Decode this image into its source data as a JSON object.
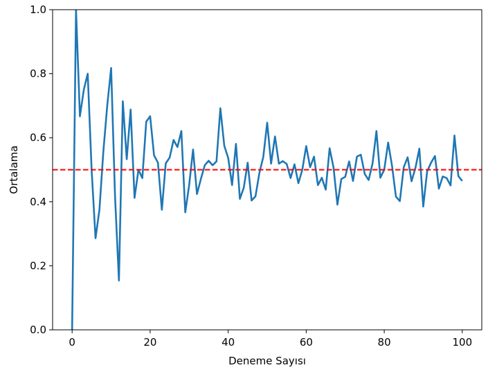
{
  "chart_data": {
    "type": "line",
    "title": "",
    "xlabel": "Deneme Sayısı",
    "ylabel": "Ortalama",
    "xlim": [
      -5,
      105
    ],
    "ylim": [
      0,
      1.0
    ],
    "xticks": [
      0,
      20,
      40,
      60,
      80,
      100
    ],
    "yticks": [
      0.0,
      0.2,
      0.4,
      0.6,
      0.8,
      1.0
    ],
    "xtick_labels": [
      "0",
      "20",
      "40",
      "60",
      "80",
      "100"
    ],
    "ytick_labels": [
      "0.0",
      "0.2",
      "0.4",
      "0.6",
      "0.8",
      "1.0"
    ],
    "grid": false,
    "series": [
      {
        "color": "#1f77b4",
        "x": [
          0,
          1,
          2,
          3,
          4,
          5,
          6,
          7,
          8,
          9,
          10,
          11,
          12,
          13,
          14,
          15,
          16,
          17,
          18,
          19,
          20,
          21,
          22,
          23,
          24,
          25,
          26,
          27,
          28,
          29,
          30,
          31,
          32,
          33,
          34,
          35,
          36,
          37,
          38,
          39,
          40,
          41,
          42,
          43,
          44,
          45,
          46,
          47,
          48,
          49,
          50,
          51,
          52,
          53,
          54,
          55,
          56,
          57,
          58,
          59,
          60,
          61,
          62,
          63,
          64,
          65,
          66,
          67,
          68,
          69,
          70,
          71,
          72,
          73,
          74,
          75,
          76,
          77,
          78,
          79,
          80,
          81,
          82,
          83,
          84,
          85,
          86,
          87,
          88,
          89,
          90,
          91,
          92,
          93,
          94,
          95,
          96,
          97,
          98,
          99,
          100
        ],
        "y": [
          0.0,
          1.0,
          0.667,
          0.75,
          0.8,
          0.5,
          0.286,
          0.375,
          0.556,
          0.7,
          0.818,
          0.417,
          0.154,
          0.714,
          0.533,
          0.688,
          0.412,
          0.5,
          0.474,
          0.65,
          0.667,
          0.545,
          0.522,
          0.375,
          0.52,
          0.538,
          0.593,
          0.571,
          0.621,
          0.367,
          0.452,
          0.563,
          0.424,
          0.471,
          0.514,
          0.528,
          0.514,
          0.526,
          0.692,
          0.575,
          0.537,
          0.452,
          0.581,
          0.409,
          0.444,
          0.522,
          0.404,
          0.417,
          0.49,
          0.54,
          0.647,
          0.519,
          0.604,
          0.519,
          0.527,
          0.518,
          0.474,
          0.517,
          0.458,
          0.5,
          0.574,
          0.508,
          0.541,
          0.452,
          0.475,
          0.438,
          0.567,
          0.507,
          0.391,
          0.471,
          0.478,
          0.526,
          0.465,
          0.541,
          0.547,
          0.487,
          0.468,
          0.519,
          0.621,
          0.475,
          0.5,
          0.585,
          0.512,
          0.416,
          0.402,
          0.508,
          0.539,
          0.464,
          0.506,
          0.566,
          0.385,
          0.495,
          0.522,
          0.543,
          0.441,
          0.479,
          0.474,
          0.451,
          0.607,
          0.48,
          0.465
        ]
      }
    ],
    "reference_lines": [
      {
        "orientation": "horizontal",
        "y": 0.5,
        "color": "#ff0000",
        "style": "dashed"
      }
    ]
  }
}
